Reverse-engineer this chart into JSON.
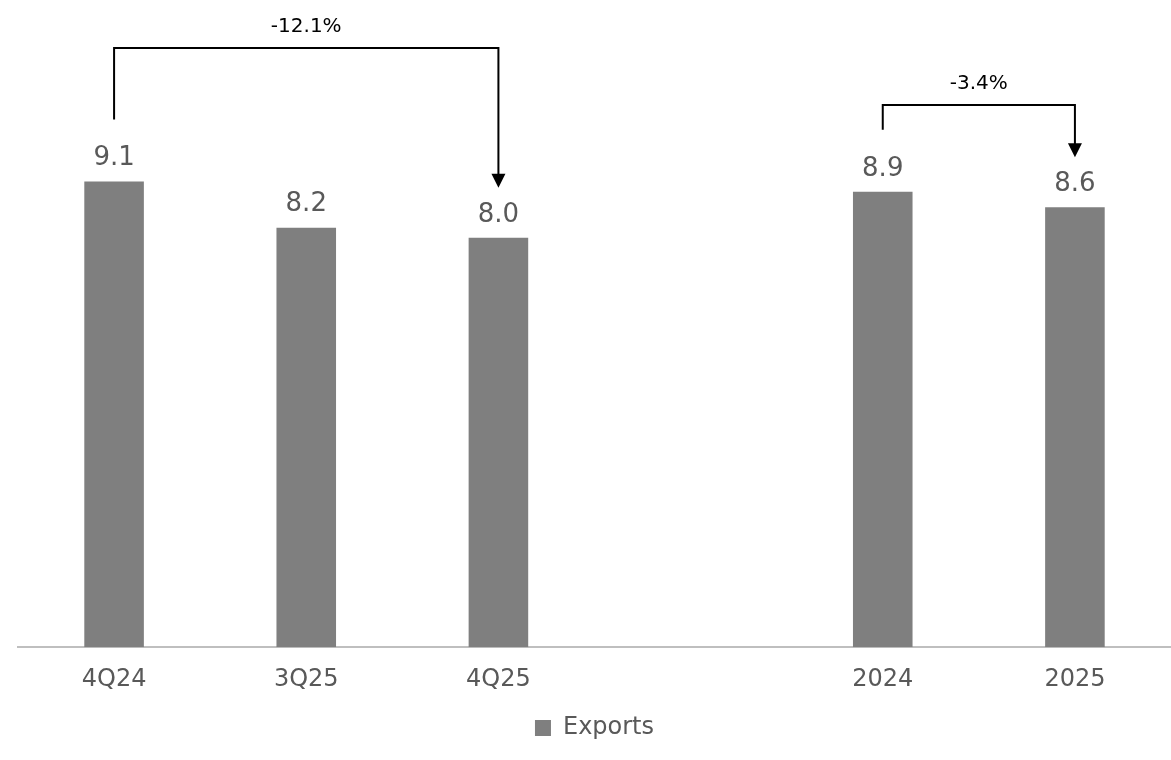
{
  "chart_data": {
    "type": "bar",
    "categories": [
      "4Q24",
      "3Q25",
      "4Q25",
      null,
      "2024",
      "2025"
    ],
    "series": [
      {
        "name": "Exports",
        "color": "#7f7f7f",
        "values": [
          9.1,
          8.2,
          8.0,
          null,
          8.9,
          8.6
        ],
        "value_labels": [
          "9.1",
          "8.2",
          "8.0",
          null,
          "8.9",
          "8.6"
        ]
      }
    ],
    "annotations": [
      "-12.1%",
      "-3.4%"
    ],
    "legend": "bottom",
    "grid": false,
    "tick_labels": "x"
  }
}
